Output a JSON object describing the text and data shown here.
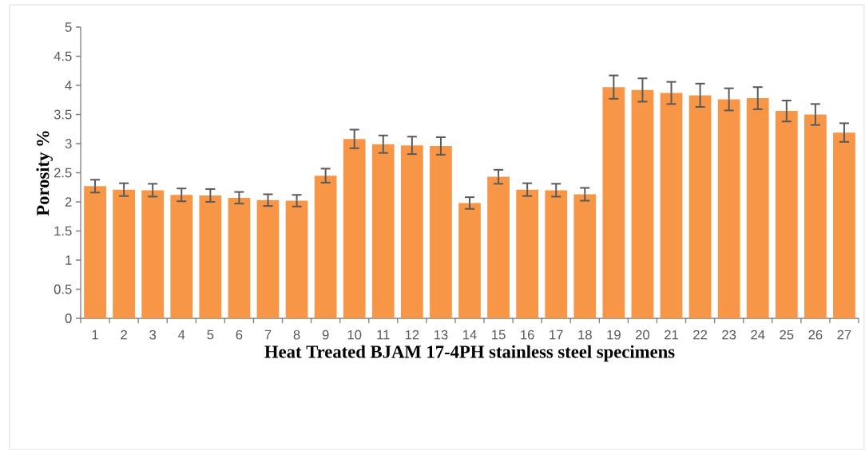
{
  "chart_data": {
    "type": "bar",
    "xlabel": "Heat Treated BJAM 17-4PH stainless steel specimens",
    "ylabel": "Porosity %",
    "categories": [
      "1",
      "2",
      "3",
      "4",
      "5",
      "6",
      "7",
      "8",
      "9",
      "10",
      "11",
      "12",
      "13",
      "14",
      "15",
      "16",
      "17",
      "18",
      "19",
      "20",
      "21",
      "22",
      "23",
      "24",
      "25",
      "26",
      "27"
    ],
    "values": [
      2.27,
      2.21,
      2.2,
      2.12,
      2.11,
      2.07,
      2.03,
      2.02,
      2.45,
      3.08,
      2.99,
      2.97,
      2.96,
      1.98,
      2.43,
      2.21,
      2.2,
      2.13,
      3.97,
      3.92,
      3.87,
      3.83,
      3.76,
      3.78,
      3.56,
      3.5,
      3.19
    ],
    "errors": [
      0.11,
      0.11,
      0.11,
      0.11,
      0.11,
      0.1,
      0.1,
      0.1,
      0.12,
      0.16,
      0.15,
      0.15,
      0.15,
      0.1,
      0.12,
      0.11,
      0.11,
      0.11,
      0.2,
      0.2,
      0.19,
      0.2,
      0.19,
      0.19,
      0.18,
      0.18,
      0.16
    ],
    "color": "#f79646",
    "ylim": [
      0,
      5
    ],
    "yticks": [
      0,
      0.5,
      1,
      1.5,
      2,
      2.5,
      3,
      3.5,
      4,
      4.5,
      5
    ]
  }
}
